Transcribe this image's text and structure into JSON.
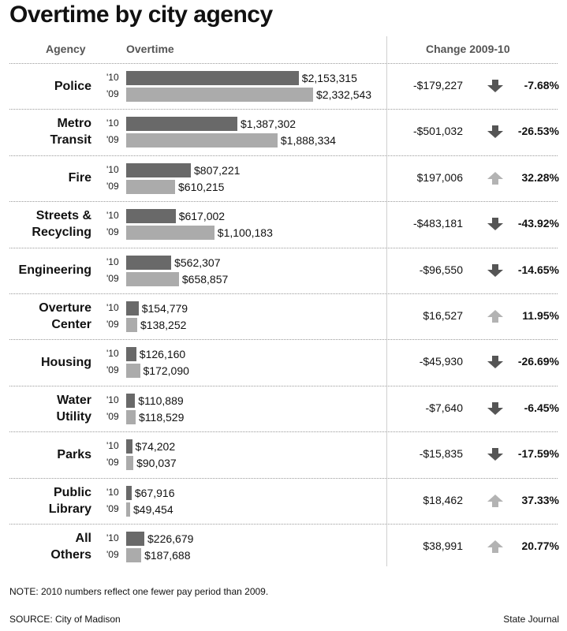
{
  "title": "Overtime by city agency",
  "columns": {
    "agency": "Agency",
    "overtime": "Overtime",
    "change": "Change 2009-10"
  },
  "year_labels": {
    "y10": "'10",
    "y09": "'09"
  },
  "chart_data": {
    "type": "bar",
    "orientation": "horizontal",
    "title": "Overtime by city agency",
    "categories": [
      "Police",
      "Metro Transit",
      "Fire",
      "Streets & Recycling",
      "Engineering",
      "Overture Center",
      "Housing",
      "Water Utility",
      "Parks",
      "Public Library",
      "All Others"
    ],
    "series": [
      {
        "name": "'10",
        "values": [
          2153315,
          1387302,
          807221,
          617002,
          562307,
          154779,
          126160,
          110889,
          74202,
          67916,
          226679
        ]
      },
      {
        "name": "'09",
        "values": [
          2332543,
          1888334,
          610215,
          1100183,
          658857,
          138252,
          172090,
          118529,
          90037,
          49454,
          187688
        ]
      }
    ],
    "xlim": [
      0,
      2332543
    ],
    "colors": {
      "y10": "#696969",
      "y09": "#ababab",
      "arrow": "#555555",
      "arrow_up": "#b3b3b3"
    },
    "rows": [
      {
        "agency": [
          "Police"
        ],
        "v10": 2153315,
        "v10_label": "$2,153,315",
        "v09": 2332543,
        "v09_label": "$2,332,543",
        "change": "-$179,227",
        "dir": "down",
        "pct": "-7.68%"
      },
      {
        "agency": [
          "Metro",
          "Transit"
        ],
        "v10": 1387302,
        "v10_label": "$1,387,302",
        "v09": 1888334,
        "v09_label": "$1,888,334",
        "change": "-$501,032",
        "dir": "down",
        "pct": "-26.53%"
      },
      {
        "agency": [
          "Fire"
        ],
        "v10": 807221,
        "v10_label": "$807,221",
        "v09": 610215,
        "v09_label": "$610,215",
        "change": "$197,006",
        "dir": "up",
        "pct": "32.28%"
      },
      {
        "agency": [
          "Streets &",
          "Recycling"
        ],
        "v10": 617002,
        "v10_label": "$617,002",
        "v09": 1100183,
        "v09_label": "$1,100,183",
        "change": "-$483,181",
        "dir": "down",
        "pct": "-43.92%"
      },
      {
        "agency": [
          "Engineering"
        ],
        "v10": 562307,
        "v10_label": "$562,307",
        "v09": 658857,
        "v09_label": "$658,857",
        "change": "-$96,550",
        "dir": "down",
        "pct": "-14.65%"
      },
      {
        "agency": [
          "Overture",
          "Center"
        ],
        "v10": 154779,
        "v10_label": "$154,779",
        "v09": 138252,
        "v09_label": "$138,252",
        "change": "$16,527",
        "dir": "up",
        "pct": "11.95%"
      },
      {
        "agency": [
          "Housing"
        ],
        "v10": 126160,
        "v10_label": "$126,160",
        "v09": 172090,
        "v09_label": "$172,090",
        "change": "-$45,930",
        "dir": "down",
        "pct": "-26.69%"
      },
      {
        "agency": [
          "Water",
          "Utility"
        ],
        "v10": 110889,
        "v10_label": "$110,889",
        "v09": 118529,
        "v09_label": "$118,529",
        "change": "-$7,640",
        "dir": "down",
        "pct": "-6.45%"
      },
      {
        "agency": [
          "Parks"
        ],
        "v10": 74202,
        "v10_label": "$74,202",
        "v09": 90037,
        "v09_label": "$90,037",
        "change": "-$15,835",
        "dir": "down",
        "pct": "-17.59%"
      },
      {
        "agency": [
          "Public",
          "Library"
        ],
        "v10": 67916,
        "v10_label": "$67,916",
        "v09": 49454,
        "v09_label": "$49,454",
        "change": "$18,462",
        "dir": "up",
        "pct": "37.33%"
      },
      {
        "agency": [
          "All",
          "Others"
        ],
        "v10": 226679,
        "v10_label": "$226,679",
        "v09": 187688,
        "v09_label": "$187,688",
        "change": "$38,991",
        "dir": "up",
        "pct": "20.77%"
      }
    ]
  },
  "note": "NOTE: 2010 numbers reflect one fewer pay period than 2009.",
  "source": "SOURCE: City of Madison",
  "credit": "State Journal"
}
